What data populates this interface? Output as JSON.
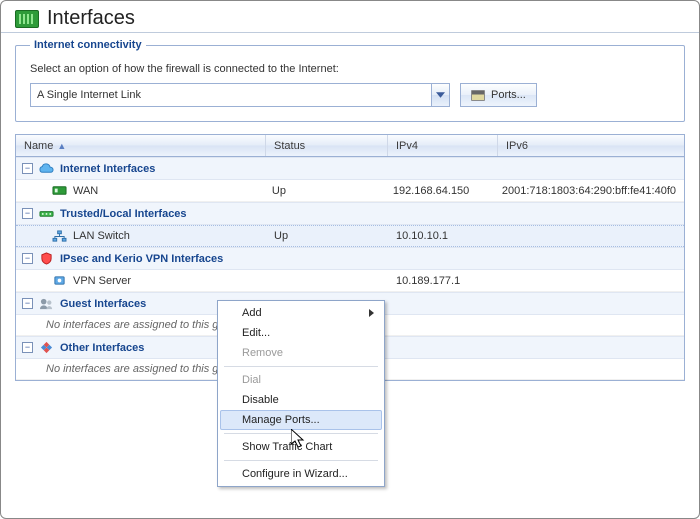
{
  "header": {
    "title": "Interfaces"
  },
  "fieldset": {
    "legend": "Internet connectivity",
    "help": "Select an option of how the firewall is connected to the Internet:",
    "select_value": "A Single Internet Link",
    "ports_button": "Ports..."
  },
  "grid": {
    "columns": {
      "name": "Name",
      "status": "Status",
      "ipv4": "IPv4",
      "ipv6": "IPv6"
    },
    "sort_indicator": "▲",
    "groups": [
      {
        "id": "internet",
        "label": "Internet Interfaces",
        "icon": "cloud-icon",
        "rows": [
          {
            "icon": "nic-icon",
            "name": "WAN",
            "status": "Up",
            "ipv4": "192.168.64.150",
            "ipv6": "2001:718:1803:64:290:bff:fe41:40f0"
          }
        ]
      },
      {
        "id": "trusted",
        "label": "Trusted/Local Interfaces",
        "icon": "switch-icon",
        "rows": [
          {
            "icon": "lan-icon",
            "name": "LAN Switch",
            "status": "Up",
            "ipv4": "10.10.10.1",
            "ipv6": "",
            "selected": true
          }
        ]
      },
      {
        "id": "ipsec",
        "label": "IPsec and Kerio VPN Interfaces",
        "icon": "shield-icon",
        "rows": [
          {
            "icon": "vpn-icon",
            "name": "VPN Server",
            "status": "",
            "ipv4": "10.189.177.1",
            "ipv6": ""
          }
        ]
      },
      {
        "id": "guest",
        "label": "Guest Interfaces",
        "icon": "guest-icon",
        "empty_text": "No interfaces are assigned to this group."
      },
      {
        "id": "other",
        "label": "Other Interfaces",
        "icon": "other-icon",
        "empty_text": "No interfaces are assigned to this group."
      }
    ]
  },
  "context_menu": {
    "items": [
      {
        "label": "Add",
        "submenu": true
      },
      {
        "label": "Edit..."
      },
      {
        "label": "Remove",
        "disabled": true
      },
      {
        "sep": true
      },
      {
        "label": "Dial",
        "disabled": true
      },
      {
        "label": "Disable"
      },
      {
        "label": "Manage Ports...",
        "highlight": true
      },
      {
        "sep": true
      },
      {
        "label": "Show Traffic Chart"
      },
      {
        "sep": true
      },
      {
        "label": "Configure in Wizard..."
      }
    ]
  }
}
